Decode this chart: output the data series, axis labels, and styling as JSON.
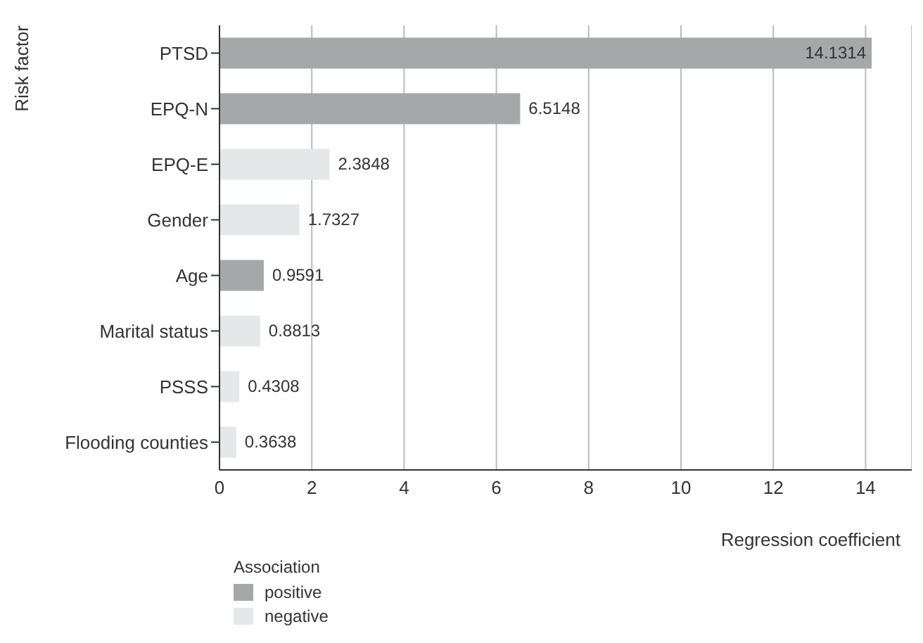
{
  "chart_data": {
    "type": "bar",
    "orientation": "horizontal",
    "stacked": true,
    "xlabel": "Regression coefficient",
    "ylabel": "Risk factor",
    "legend_title": "Association",
    "legend": "bottom left",
    "grid": "x",
    "data_labels": true,
    "categories": [
      "PTSD",
      "EPQ-N",
      "EPQ-E",
      "Gender",
      "Age",
      "Marital status",
      "PSSS",
      "Flooding counties"
    ],
    "series": [
      {
        "name": "positive",
        "color": "#a6a7a9",
        "values": [
          14.1314,
          6.5148,
          null,
          null,
          0.9591,
          null,
          null,
          null
        ]
      },
      {
        "name": "negative",
        "color": "#e6e7e8",
        "values": [
          null,
          null,
          2.3848,
          1.7327,
          null,
          0.8813,
          0.4308,
          0.3638
        ]
      }
    ],
    "xlim": [
      0,
      15
    ],
    "xticks": [
      0,
      2,
      4,
      6,
      8,
      10,
      12,
      14
    ]
  }
}
